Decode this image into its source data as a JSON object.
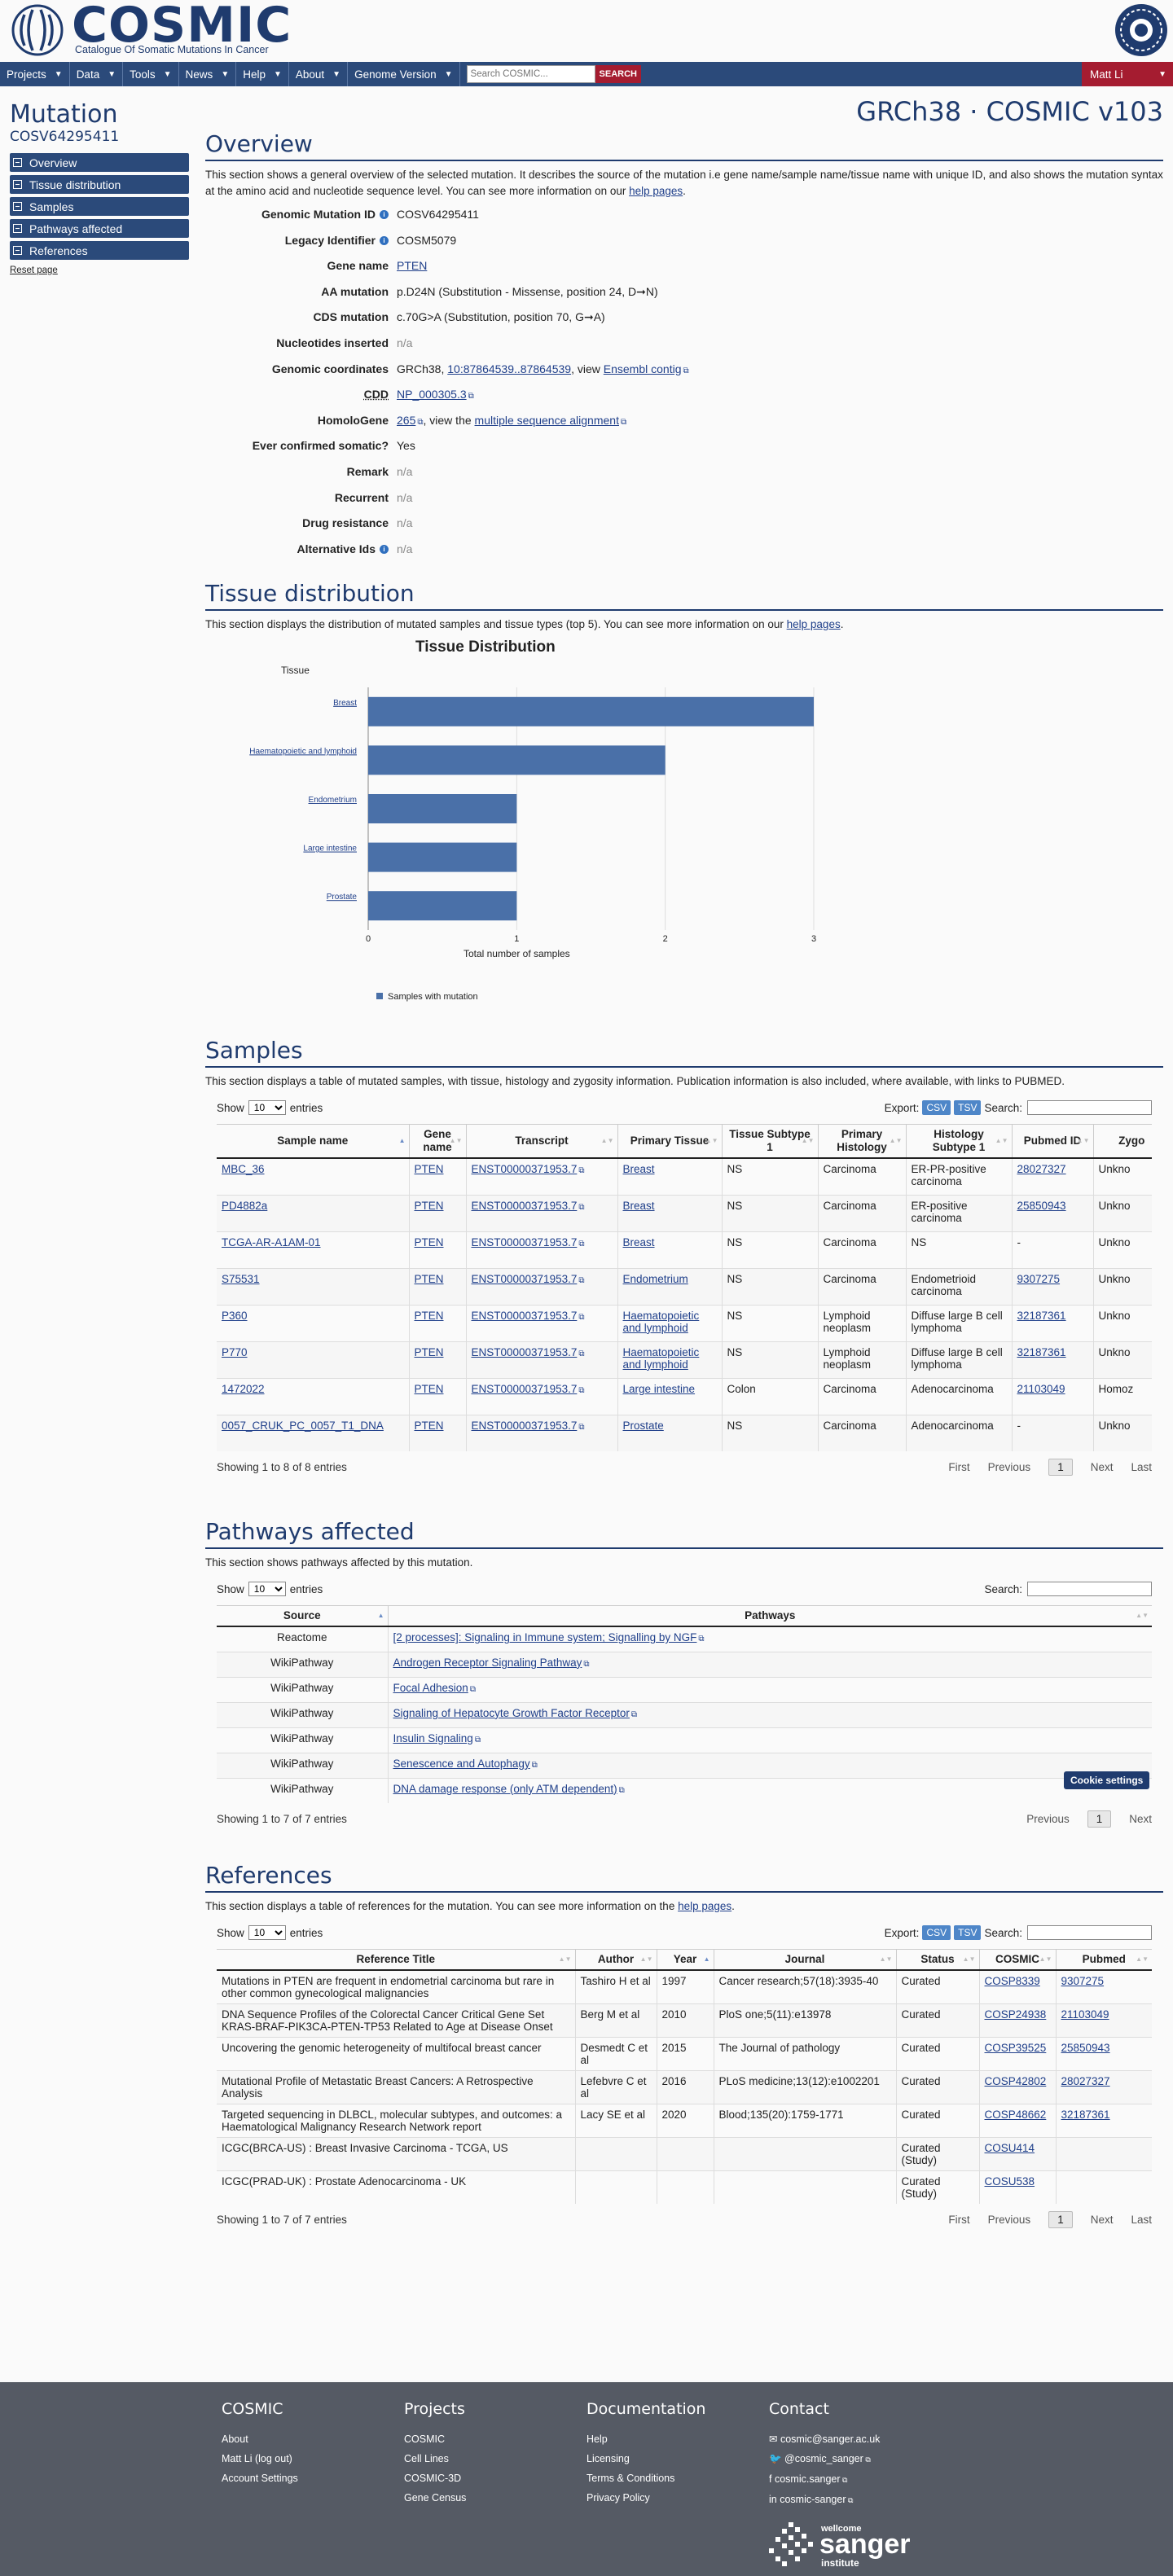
{
  "brand": {
    "name": "COSMIC",
    "subtitle": "Catalogue Of Somatic Mutations In Cancer"
  },
  "nav": {
    "items": [
      "Projects",
      "Data",
      "Tools",
      "News",
      "Help",
      "About",
      "Genome Version"
    ],
    "search_placeholder": "Search COSMIC...",
    "search_button": "SEARCH",
    "user": "Matt Li"
  },
  "sidebar": {
    "title": "Mutation",
    "id": "COSV64295411",
    "links": [
      "Overview",
      "Tissue distribution",
      "Samples",
      "Pathways affected",
      "References"
    ],
    "reset": "Reset page"
  },
  "release": "GRCh38 · COSMIC v103",
  "overview": {
    "title": "Overview",
    "desc_1": "This section shows a general overview of the selected mutation. It describes the source of the mutation i.e gene name/sample name/tissue name with unique ID, and also shows the mutation syntax at the amino acid and nucleotide sequence level. You can see more information on our ",
    "help_link": "help pages",
    "desc_2": ".",
    "fields": {
      "genomic_id": {
        "label": "Genomic Mutation ID",
        "value": "COSV64295411"
      },
      "legacy_id": {
        "label": "Legacy Identifier",
        "value": "COSM5079"
      },
      "gene": {
        "label": "Gene name",
        "value": "PTEN"
      },
      "aa": {
        "label": "AA mutation",
        "value": "p.D24N (Substitution - Missense, position 24, D➞N)"
      },
      "cds": {
        "label": "CDS mutation",
        "value": "c.70G>A (Substitution, position 70, G➞A)"
      },
      "nuc": {
        "label": "Nucleotides inserted",
        "value": "n/a"
      },
      "coords": {
        "label": "Genomic coordinates",
        "prefix": "GRCh38, ",
        "link": "10:87864539..87864539",
        "mid": ", view ",
        "link2": "Ensembl contig"
      },
      "cdd": {
        "label": "CDD",
        "link": "NP_000305.3"
      },
      "homolo": {
        "label": "HomoloGene",
        "link": "265",
        "mid": ", view the ",
        "link2": "multiple sequence alignment"
      },
      "somatic": {
        "label": "Ever confirmed somatic?",
        "value": "Yes"
      },
      "remark": {
        "label": "Remark",
        "value": "n/a"
      },
      "recurrent": {
        "label": "Recurrent",
        "value": "n/a"
      },
      "drug": {
        "label": "Drug resistance",
        "value": "n/a"
      },
      "altids": {
        "label": "Alternative Ids",
        "value": "n/a"
      }
    }
  },
  "tissue": {
    "title": "Tissue distribution",
    "desc": "This section displays the distribution of mutated samples and tissue types (top 5). You can see more information on our ",
    "help_link": "help pages",
    "desc_end": "."
  },
  "chart_data": {
    "type": "bar",
    "orientation": "horizontal",
    "title": "Tissue Distribution",
    "ylabel": "Tissue",
    "xlabel": "Total number of samples",
    "categories": [
      "Breast",
      "Haematopoietic and lymphoid",
      "Endometrium",
      "Large intestine",
      "Prostate"
    ],
    "series": [
      {
        "name": "Samples with mutation",
        "values": [
          3,
          2,
          1,
          1,
          1
        ]
      }
    ],
    "xlim": [
      0,
      3
    ],
    "xticks": [
      0,
      1,
      2,
      3
    ],
    "grid": true,
    "legend": "bottom-left",
    "colors": {
      "bar": "#4a70a8"
    }
  },
  "samples": {
    "title": "Samples",
    "desc": "This section displays a table of mutated samples, with tissue, histology and zygosity information. Publication information is also included, where available, with links to PUBMED.",
    "show": "Show",
    "entries": "entries",
    "page_size": "10",
    "export": "Export:",
    "csv": "CSV",
    "tsv": "TSV",
    "search": "Search:",
    "columns": [
      "Sample name",
      "Gene name",
      "Transcript",
      "Primary Tissue",
      "Tissue Subtype 1",
      "Primary Histology",
      "Histology Subtype 1",
      "Pubmed ID",
      "Zygo"
    ],
    "rows": [
      [
        "MBC_36",
        "PTEN",
        "ENST00000371953.7",
        "Breast",
        "NS",
        "Carcinoma",
        "ER-PR-positive carcinoma",
        "28027327",
        "Unkno"
      ],
      [
        "PD4882a",
        "PTEN",
        "ENST00000371953.7",
        "Breast",
        "NS",
        "Carcinoma",
        "ER-positive carcinoma",
        "25850943",
        "Unkno"
      ],
      [
        "TCGA-AR-A1AM-01",
        "PTEN",
        "ENST00000371953.7",
        "Breast",
        "NS",
        "Carcinoma",
        "NS",
        "-",
        "Unkno"
      ],
      [
        "S75531",
        "PTEN",
        "ENST00000371953.7",
        "Endometrium",
        "NS",
        "Carcinoma",
        "Endometrioid carcinoma",
        "9307275",
        "Unkno"
      ],
      [
        "P360",
        "PTEN",
        "ENST00000371953.7",
        "Haematopoietic and lymphoid",
        "NS",
        "Lymphoid neoplasm",
        "Diffuse large B cell lymphoma",
        "32187361",
        "Unkno"
      ],
      [
        "P770",
        "PTEN",
        "ENST00000371953.7",
        "Haematopoietic and lymphoid",
        "NS",
        "Lymphoid neoplasm",
        "Diffuse large B cell lymphoma",
        "32187361",
        "Unkno"
      ],
      [
        "1472022",
        "PTEN",
        "ENST00000371953.7",
        "Large intestine",
        "Colon",
        "Carcinoma",
        "Adenocarcinoma",
        "21103049",
        "Homoz"
      ],
      [
        "0057_CRUK_PC_0057_T1_DNA",
        "PTEN",
        "ENST00000371953.7",
        "Prostate",
        "NS",
        "Carcinoma",
        "Adenocarcinoma",
        "-",
        "Unkno"
      ]
    ],
    "info": "Showing 1 to 8 of 8 entries",
    "pager": {
      "first": "First",
      "prev": "Previous",
      "page": "1",
      "next": "Next",
      "last": "Last"
    }
  },
  "pathways": {
    "title": "Pathways affected",
    "desc": "This section shows pathways affected by this mutation.",
    "show": "Show",
    "entries": "entries",
    "page_size": "10",
    "search": "Search:",
    "columns": [
      "Source",
      "Pathways"
    ],
    "rows": [
      [
        "Reactome",
        "[2 processes]: Signaling in Immune system; Signalling by NGF"
      ],
      [
        "WikiPathway",
        "Androgen Receptor Signaling Pathway"
      ],
      [
        "WikiPathway",
        "Focal Adhesion"
      ],
      [
        "WikiPathway",
        "Signaling of Hepatocyte Growth Factor Receptor"
      ],
      [
        "WikiPathway",
        "Insulin Signaling"
      ],
      [
        "WikiPathway",
        "Senescence and Autophagy"
      ],
      [
        "WikiPathway",
        "DNA damage response (only ATM dependent)"
      ]
    ],
    "info": "Showing 1 to 7 of 7 entries",
    "pager": {
      "prev": "Previous",
      "page": "1",
      "next": "Next"
    }
  },
  "cookie": "Cookie settings",
  "references": {
    "title": "References",
    "desc": "This section displays a table of references for the mutation. You can see more information on the ",
    "help_link": "help pages",
    "desc_end": ".",
    "show": "Show",
    "entries": "entries",
    "page_size": "10",
    "export": "Export:",
    "csv": "CSV",
    "tsv": "TSV",
    "search": "Search:",
    "columns": [
      "Reference Title",
      "Author",
      "Year",
      "Journal",
      "Status",
      "COSMIC",
      "Pubmed"
    ],
    "rows": [
      [
        "Mutations in PTEN are frequent in endometrial carcinoma but rare in other common gynecological malignancies",
        "Tashiro H et al",
        "1997",
        "Cancer research;57(18):3935-40",
        "Curated",
        "COSP8339",
        "9307275"
      ],
      [
        "DNA Sequence Profiles of the Colorectal Cancer Critical Gene Set KRAS-BRAF-PIK3CA-PTEN-TP53 Related to Age at Disease Onset",
        "Berg M et al",
        "2010",
        "PloS one;5(11):e13978",
        "Curated",
        "COSP24938",
        "21103049"
      ],
      [
        "Uncovering the genomic heterogeneity of multifocal breast cancer",
        "Desmedt C et al",
        "2015",
        "The Journal of pathology",
        "Curated",
        "COSP39525",
        "25850943"
      ],
      [
        "Mutational Profile of Metastatic Breast Cancers: A Retrospective Analysis",
        "Lefebvre C et al",
        "2016",
        "PLoS medicine;13(12):e1002201",
        "Curated",
        "COSP42802",
        "28027327"
      ],
      [
        "Targeted sequencing in DLBCL, molecular subtypes, and outcomes: a Haematological Malignancy Research Network report",
        "Lacy SE et al",
        "2020",
        "Blood;135(20):1759-1771",
        "Curated",
        "COSP48662",
        "32187361"
      ],
      [
        "ICGC(BRCA-US) : Breast Invasive Carcinoma - TCGA, US",
        "",
        "",
        "",
        "Curated (Study)",
        "COSU414",
        ""
      ],
      [
        "ICGC(PRAD-UK) : Prostate Adenocarcinoma - UK",
        "",
        "",
        "",
        "Curated (Study)",
        "COSU538",
        ""
      ]
    ],
    "info": "Showing 1 to 7 of 7 entries",
    "pager": {
      "first": "First",
      "prev": "Previous",
      "page": "1",
      "next": "Next",
      "last": "Last"
    }
  },
  "footer": {
    "cosmic": {
      "title": "COSMIC",
      "items": [
        "About",
        "Matt Li (log out)",
        "Account Settings"
      ]
    },
    "projects": {
      "title": "Projects",
      "items": [
        "COSMIC",
        "Cell Lines",
        "COSMIC-3D",
        "Gene Census"
      ]
    },
    "docs": {
      "title": "Documentation",
      "items": [
        "Help",
        "Licensing",
        "Terms & Conditions",
        "Privacy Policy"
      ]
    },
    "contact": {
      "title": "Contact",
      "items": [
        "cosmic@sanger.ac.uk",
        "@cosmic_sanger",
        "cosmic.sanger",
        "cosmic-sanger"
      ]
    },
    "sanger": {
      "top": "wellcome",
      "name": "sanger",
      "bottom": "institute"
    }
  }
}
